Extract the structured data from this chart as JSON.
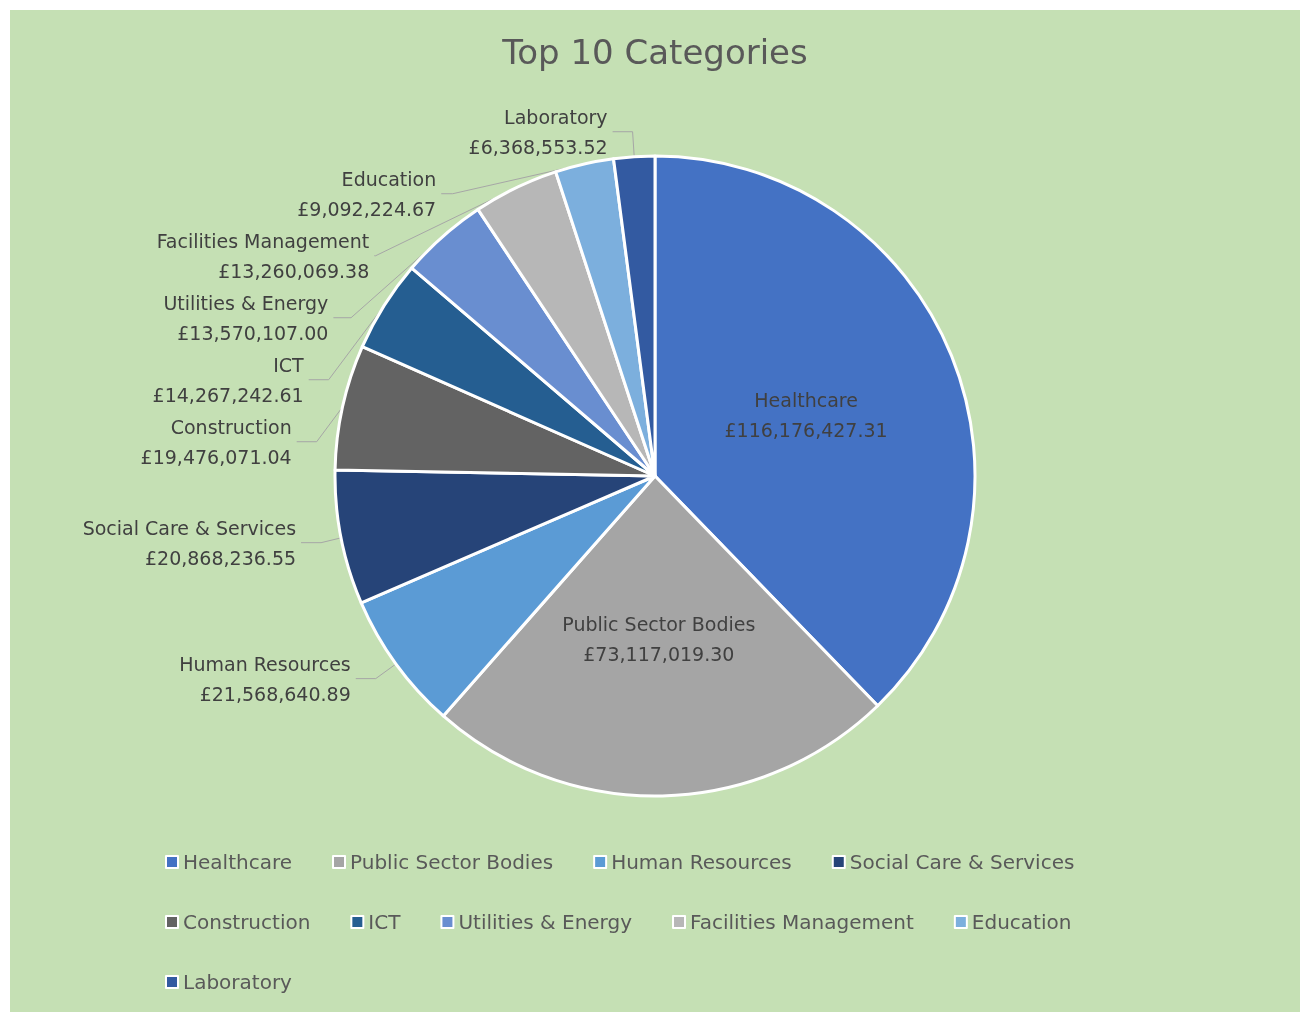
{
  "chart_data": {
    "type": "pie",
    "title": "Top 10 Categories",
    "categories": [
      "Healthcare",
      "Public Sector Bodies",
      "Human Resources",
      "Social Care & Services",
      "Construction",
      "ICT",
      "Utilities & Energy",
      "Facilities Management",
      "Education",
      "Laboratory"
    ],
    "values": [
      116176427.31,
      73117019.3,
      21568640.89,
      20868236.55,
      19476071.04,
      14267242.61,
      13570107.0,
      13260069.38,
      9092224.67,
      6368553.52
    ],
    "value_labels": [
      "£116,176,427.31",
      "£73,117,019.30",
      "£21,568,640.89",
      "£20,868,236.55",
      "£19,476,071.04",
      "£14,267,242.61",
      "£13,570,107.00",
      "£13,260,069.38",
      "£9,092,224.67",
      "£6,368,553.52"
    ],
    "colors": [
      "#4472c4",
      "#a5a5a5",
      "#5b9bd5",
      "#264478",
      "#636363",
      "#255e91",
      "#698ed0",
      "#b7b7b7",
      "#7cafdd",
      "#335aa1"
    ],
    "legend": "bottom"
  }
}
